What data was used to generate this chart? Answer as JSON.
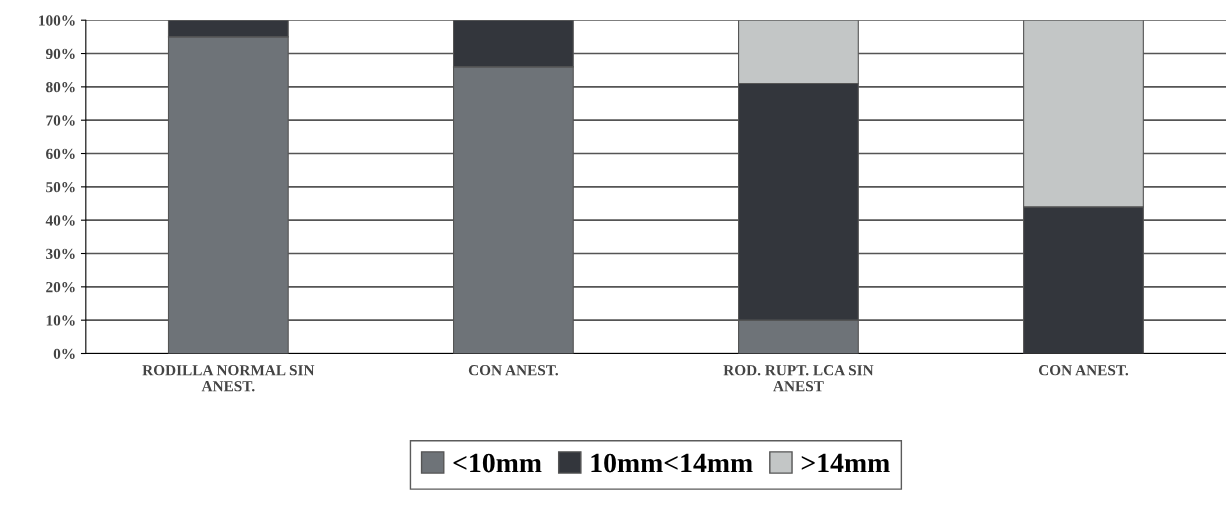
{
  "chart_data": {
    "type": "bar",
    "stacked": true,
    "categories": [
      "RODILLA NORMAL SIN\nANEST.",
      "CON ANEST.",
      "ROD. RUPT. LCA SIN\nANEST",
      "CON ANEST."
    ],
    "series": [
      {
        "name": "<10mm",
        "color": "#6e7378",
        "values": [
          95,
          86,
          10,
          0
        ]
      },
      {
        "name": "10mm<14mm",
        "color": "#33363c",
        "values": [
          5,
          14,
          71,
          44
        ]
      },
      {
        "name": ">14mm",
        "color": "#c3c6c6",
        "values": [
          0,
          0,
          19,
          56
        ]
      }
    ],
    "ylim": [
      0,
      100
    ],
    "yticks": [
      {
        "value": 0,
        "label": "0%"
      },
      {
        "value": 10,
        "label": "10%"
      },
      {
        "value": 20,
        "label": "20%"
      },
      {
        "value": 30,
        "label": "30%"
      },
      {
        "value": 40,
        "label": "40%"
      },
      {
        "value": 50,
        "label": "50%"
      },
      {
        "value": 60,
        "label": "60%"
      },
      {
        "value": 70,
        "label": "70%"
      },
      {
        "value": 80,
        "label": "80%"
      },
      {
        "value": 90,
        "label": "90%"
      },
      {
        "value": 100,
        "label": "100%"
      }
    ],
    "grid": "y",
    "legend": "bottom"
  }
}
